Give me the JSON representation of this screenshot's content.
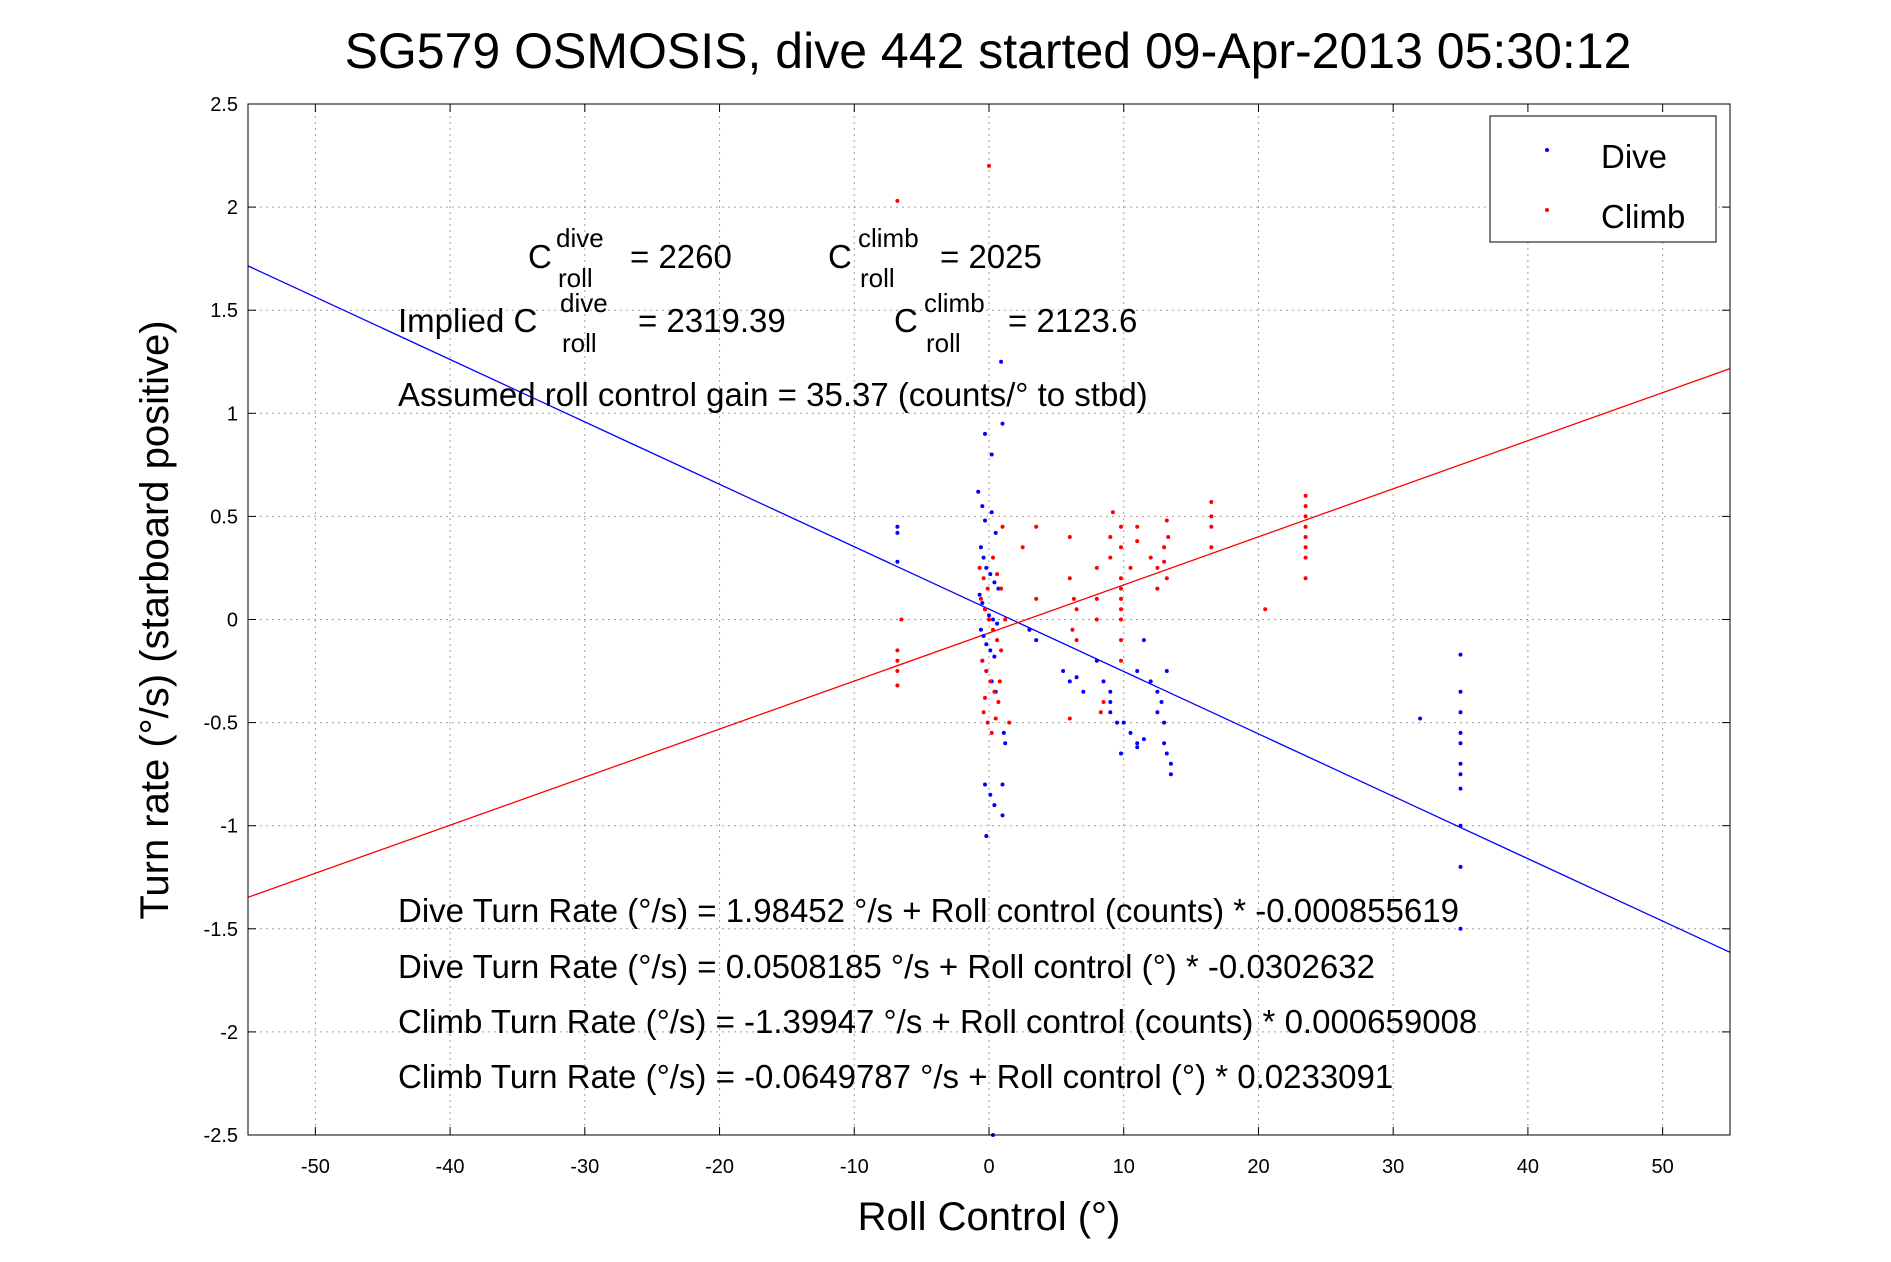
{
  "chart_data": {
    "type": "scatter",
    "title": "SG579 OSMOSIS, dive 442 started 09-Apr-2013 05:30:12",
    "xlabel": "Roll Control (°)",
    "ylabel": "Turn rate (°/s) (starboard positive)",
    "xlim": [
      -55,
      55
    ],
    "ylim": [
      -2.5,
      2.5
    ],
    "xticks": [
      -50,
      -40,
      -30,
      -20,
      -10,
      0,
      10,
      20,
      30,
      40,
      50
    ],
    "yticks": [
      -2.5,
      -2,
      -1.5,
      -1,
      -0.5,
      0,
      0.5,
      1,
      1.5,
      2,
      2.5
    ],
    "grid": true,
    "legend_position": "top-right",
    "series": [
      {
        "name": "Dive",
        "color": "#0000ff",
        "marker": "dot",
        "points": [
          [
            -6.8,
            0.45
          ],
          [
            -6.8,
            0.42
          ],
          [
            -6.8,
            0.28
          ],
          [
            -0.8,
            0.62
          ],
          [
            -0.5,
            0.55
          ],
          [
            -0.3,
            0.48
          ],
          [
            0.2,
            0.52
          ],
          [
            0.5,
            0.42
          ],
          [
            -0.6,
            0.35
          ],
          [
            -0.4,
            0.3
          ],
          [
            -0.2,
            0.25
          ],
          [
            0.1,
            0.22
          ],
          [
            0.4,
            0.18
          ],
          [
            0.7,
            0.15
          ],
          [
            -0.7,
            0.12
          ],
          [
            -0.5,
            0.08
          ],
          [
            -0.3,
            0.05
          ],
          [
            0,
            0.02
          ],
          [
            0.3,
            0.0
          ],
          [
            0.6,
            -0.02
          ],
          [
            -0.6,
            -0.05
          ],
          [
            -0.4,
            -0.08
          ],
          [
            -0.2,
            -0.12
          ],
          [
            0.1,
            -0.15
          ],
          [
            0.4,
            -0.18
          ],
          [
            -0.5,
            -0.2
          ],
          [
            -0.2,
            -0.25
          ],
          [
            0.2,
            -0.3
          ],
          [
            0.5,
            -0.35
          ],
          [
            -0.3,
            -0.8
          ],
          [
            0.1,
            -0.85
          ],
          [
            0.4,
            -0.9
          ],
          [
            -0.2,
            -1.05
          ],
          [
            0.9,
            1.25
          ],
          [
            1.0,
            0.95
          ],
          [
            -0.3,
            0.9
          ],
          [
            0.2,
            0.8
          ],
          [
            1.1,
            -0.55
          ],
          [
            1.0,
            -0.8
          ],
          [
            1.0,
            -0.95
          ],
          [
            1.2,
            -0.6
          ],
          [
            0.3,
            -2.5
          ],
          [
            3.0,
            -0.05
          ],
          [
            3.5,
            -0.1
          ],
          [
            5.5,
            -0.25
          ],
          [
            6.0,
            -0.3
          ],
          [
            6.5,
            -0.28
          ],
          [
            7.0,
            -0.35
          ],
          [
            8.0,
            -0.2
          ],
          [
            8.5,
            -0.3
          ],
          [
            9.0,
            -0.4
          ],
          [
            9.0,
            -0.45
          ],
          [
            9.5,
            -0.5
          ],
          [
            9.0,
            -0.35
          ],
          [
            10.0,
            -0.5
          ],
          [
            10.5,
            -0.55
          ],
          [
            11.0,
            -0.6
          ],
          [
            11.0,
            -0.62
          ],
          [
            11.5,
            -0.58
          ],
          [
            9.8,
            -0.65
          ],
          [
            11.0,
            -0.25
          ],
          [
            11.5,
            -0.1
          ],
          [
            12.0,
            -0.3
          ],
          [
            12.5,
            -0.35
          ],
          [
            12.8,
            -0.4
          ],
          [
            13.0,
            -0.5
          ],
          [
            13.0,
            -0.6
          ],
          [
            13.2,
            -0.65
          ],
          [
            13.5,
            -0.7
          ],
          [
            13.5,
            -0.75
          ],
          [
            13.2,
            -0.25
          ],
          [
            12.5,
            -0.45
          ],
          [
            32.0,
            -0.48
          ],
          [
            35.0,
            -0.17
          ],
          [
            35.0,
            -0.35
          ],
          [
            35.0,
            -0.45
          ],
          [
            35.0,
            -0.55
          ],
          [
            35.0,
            -0.6
          ],
          [
            35.0,
            -0.7
          ],
          [
            35.0,
            -0.75
          ],
          [
            35.0,
            -0.82
          ],
          [
            35.0,
            -1.0
          ],
          [
            35.0,
            -1.2
          ],
          [
            35.0,
            -1.5
          ]
        ]
      },
      {
        "name": "Climb",
        "color": "#ff0000",
        "marker": "dot",
        "points": [
          [
            -6.8,
            2.03
          ],
          [
            0,
            2.2
          ],
          [
            -6.5,
            0.0
          ],
          [
            -6.8,
            -0.15
          ],
          [
            -6.8,
            -0.2
          ],
          [
            -6.8,
            -0.25
          ],
          [
            -6.8,
            -0.32
          ],
          [
            -0.7,
            0.25
          ],
          [
            -0.4,
            0.2
          ],
          [
            -0.1,
            0.15
          ],
          [
            0.3,
            0.3
          ],
          [
            0.6,
            0.22
          ],
          [
            0.9,
            0.15
          ],
          [
            -0.6,
            0.1
          ],
          [
            -0.3,
            0.05
          ],
          [
            0.0,
            0.0
          ],
          [
            0.3,
            -0.05
          ],
          [
            0.6,
            -0.1
          ],
          [
            0.9,
            -0.15
          ],
          [
            -0.5,
            -0.2
          ],
          [
            -0.2,
            -0.25
          ],
          [
            0.1,
            -0.3
          ],
          [
            0.4,
            -0.35
          ],
          [
            0.7,
            -0.4
          ],
          [
            -0.4,
            -0.45
          ],
          [
            -0.1,
            -0.5
          ],
          [
            0.2,
            -0.55
          ],
          [
            0.5,
            -0.48
          ],
          [
            -0.3,
            -0.38
          ],
          [
            0.8,
            -0.3
          ],
          [
            1.0,
            0.45
          ],
          [
            1.2,
            0.0
          ],
          [
            1.5,
            -0.5
          ],
          [
            2.5,
            0.35
          ],
          [
            3.5,
            0.1
          ],
          [
            3.5,
            0.45
          ],
          [
            6.0,
            0.4
          ],
          [
            6.0,
            0.2
          ],
          [
            6.3,
            0.1
          ],
          [
            6.5,
            0.05
          ],
          [
            6.2,
            -0.05
          ],
          [
            6.5,
            -0.1
          ],
          [
            6.0,
            -0.48
          ],
          [
            8.0,
            0.25
          ],
          [
            8.0,
            0.1
          ],
          [
            8.0,
            0.0
          ],
          [
            8.3,
            -0.45
          ],
          [
            8.5,
            -0.4
          ],
          [
            9.0,
            0.4
          ],
          [
            9.0,
            0.3
          ],
          [
            9.2,
            0.52
          ],
          [
            9.8,
            0.2
          ],
          [
            9.8,
            0.15
          ],
          [
            9.8,
            0.1
          ],
          [
            9.8,
            0.05
          ],
          [
            9.8,
            0.0
          ],
          [
            9.8,
            -0.1
          ],
          [
            9.8,
            -0.2
          ],
          [
            9.8,
            0.35
          ],
          [
            9.8,
            0.45
          ],
          [
            10.5,
            0.25
          ],
          [
            11.0,
            0.38
          ],
          [
            11.0,
            0.45
          ],
          [
            12.0,
            0.3
          ],
          [
            12.5,
            0.25
          ],
          [
            12.5,
            0.15
          ],
          [
            13.0,
            0.35
          ],
          [
            13.0,
            0.28
          ],
          [
            13.2,
            0.2
          ],
          [
            13.2,
            0.48
          ],
          [
            13.3,
            0.4
          ],
          [
            16.5,
            0.57
          ],
          [
            16.5,
            0.5
          ],
          [
            16.5,
            0.45
          ],
          [
            16.5,
            0.35
          ],
          [
            20.5,
            0.05
          ],
          [
            23.5,
            0.6
          ],
          [
            23.5,
            0.55
          ],
          [
            23.5,
            0.5
          ],
          [
            23.5,
            0.45
          ],
          [
            23.5,
            0.4
          ],
          [
            23.5,
            0.35
          ],
          [
            23.5,
            0.3
          ],
          [
            23.5,
            0.2
          ]
        ]
      },
      {
        "name": "Dive fit",
        "color": "#0000ff",
        "marker": "line",
        "points": [
          [
            -55,
            1.715
          ],
          [
            55,
            -1.614
          ]
        ]
      },
      {
        "name": "Climb fit",
        "color": "#ff0000",
        "marker": "line",
        "points": [
          [
            -55,
            -1.347
          ],
          [
            55,
            1.217
          ]
        ]
      }
    ],
    "annotations": {
      "cdive_prefix": "C",
      "cdive_sup": "dive",
      "cdive_sub": "roll",
      "cdive_value": "= 2260",
      "cclimb_prefix": "C",
      "cclimb_sup": "climb",
      "cclimb_sub": "roll",
      "cclimb_value": "= 2025",
      "implied_prefix": "Implied C",
      "implied_dive_sup": "dive",
      "implied_dive_sub": "roll",
      "implied_dive_value": "= 2319.39",
      "implied_climb_prefix": "C",
      "implied_climb_sup": "climb",
      "implied_climb_sub": "roll",
      "implied_climb_value": "= 2123.6",
      "gain": "Assumed roll control gain = 35.37 (counts/° to stbd)",
      "eq1": "Dive Turn Rate (°/s) = 1.98452 °/s + Roll control (counts) * -0.000855619",
      "eq2": "Dive Turn Rate (°/s) = 0.0508185 °/s + Roll control (°) * -0.0302632",
      "eq3": "Climb Turn Rate (°/s) = -1.39947 °/s + Roll control (counts) * 0.000659008",
      "eq4": "Climb Turn Rate (°/s) = -0.0649787 °/s + Roll control (°) * 0.0233091"
    },
    "legend": {
      "dive": "Dive",
      "climb": "Climb"
    }
  }
}
